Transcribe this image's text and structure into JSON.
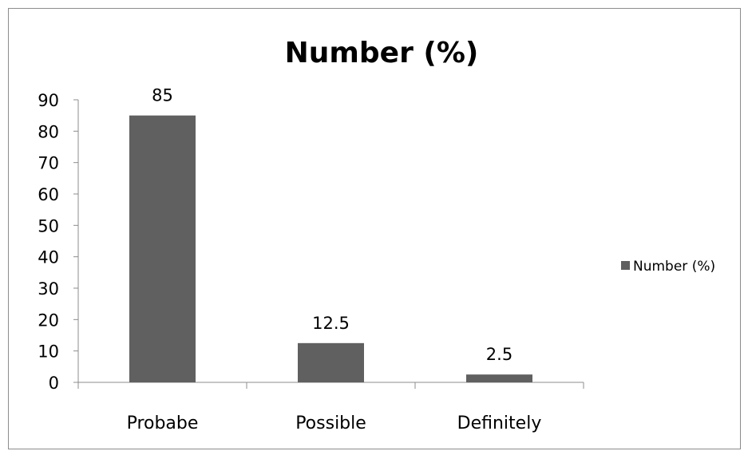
{
  "chart_data": {
    "type": "bar",
    "title": "Number (%)",
    "xlabel": "",
    "ylabel": "",
    "categories": [
      "Probabe",
      "Possible",
      "Definitely"
    ],
    "series": [
      {
        "name": "Number (%)",
        "values": [
          85,
          12.5,
          2.5
        ],
        "color": "#606060"
      }
    ],
    "data_labels": [
      "85",
      "12.5",
      "2.5"
    ],
    "ylim": [
      0,
      90
    ],
    "yticks": [
      0,
      10,
      20,
      30,
      40,
      50,
      60,
      70,
      80,
      90
    ],
    "grid": false,
    "legend_position": "right"
  }
}
